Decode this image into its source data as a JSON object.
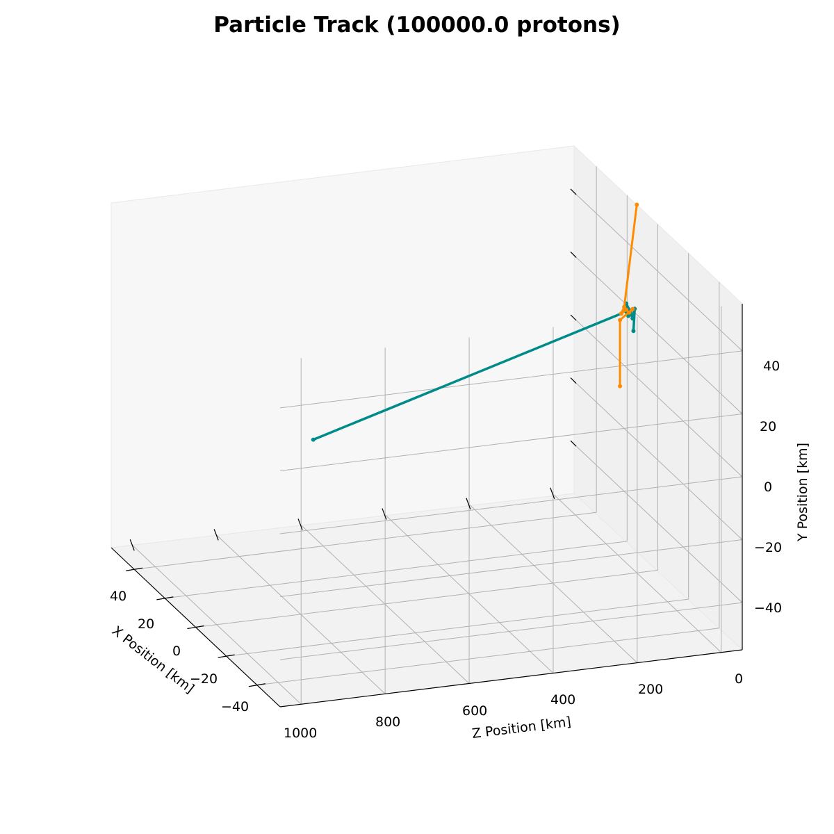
{
  "chart_data": {
    "type": "scatter",
    "projection": "3d",
    "title": "Particle Track (100000.0 protons)",
    "xlabel": "X Position [km]",
    "ylabel": "Y Position [km]",
    "zlabel": "Z Position [km]",
    "x_ticks": [
      "40",
      "20",
      "0",
      "−20",
      "−40"
    ],
    "z_ticks": [
      "1000",
      "800",
      "600",
      "400",
      "200",
      "0"
    ],
    "y_ticks": [
      "40",
      "20",
      "0",
      "−20",
      "−40"
    ],
    "xlim": [
      -55,
      55
    ],
    "ylim": [
      -55,
      55
    ],
    "zlim": [
      -50,
      1050
    ],
    "grid": true,
    "series": [
      {
        "color": "#008B8B",
        "points": [
          {
            "z": 770,
            "y": 0
          },
          {
            "z": 37,
            "y": 28
          },
          {
            "z": 30,
            "y": 29
          },
          {
            "z": 20,
            "y": 27
          },
          {
            "z": 25,
            "y": 31
          },
          {
            "z": 15,
            "y": 28
          },
          {
            "z": 10,
            "y": 26
          },
          {
            "z": 5,
            "y": 29
          },
          {
            "z": 8,
            "y": 22
          }
        ]
      },
      {
        "color": "#FF8C00",
        "points": [
          {
            "z": 0,
            "y": 62
          },
          {
            "z": 30,
            "y": 30
          },
          {
            "z": 37,
            "y": 28
          },
          {
            "z": 25,
            "y": 29
          },
          {
            "z": 18,
            "y": 28
          },
          {
            "z": 10,
            "y": 29
          },
          {
            "z": 40,
            "y": 26
          },
          {
            "z": 40,
            "y": 5
          }
        ]
      }
    ]
  }
}
